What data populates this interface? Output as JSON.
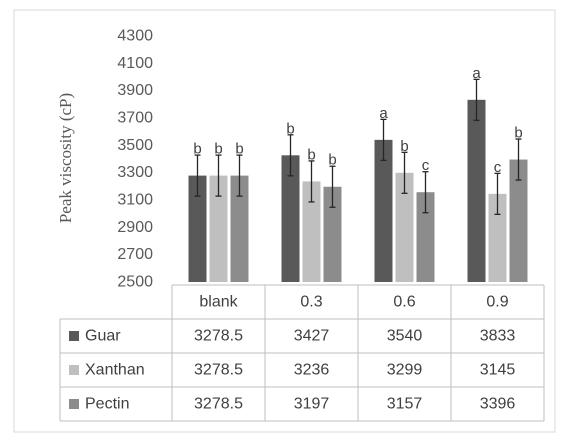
{
  "chart_data": {
    "type": "bar",
    "categories": [
      "blank",
      "0.3",
      "0.6",
      "0.9"
    ],
    "ylabel": "Peak viscosity (cP)",
    "ylim": [
      2500,
      4300
    ],
    "yticks": [
      2500,
      2700,
      2900,
      3100,
      3300,
      3500,
      3700,
      3900,
      4100,
      4300
    ],
    "grid": false,
    "legend": "data table below chart",
    "series": [
      {
        "name": "Guar",
        "color": "#595959",
        "values": [
          3278.5,
          3427,
          3540,
          3833
        ],
        "errors": [
          150,
          150,
          150,
          150
        ],
        "letters": [
          "b",
          "b",
          "a",
          "a"
        ]
      },
      {
        "name": "Xanthan",
        "color": "#bfbfbf",
        "values": [
          3278.5,
          3236,
          3299,
          3145
        ],
        "errors": [
          150,
          150,
          150,
          150
        ],
        "letters": [
          "b",
          "b",
          "b",
          "c"
        ]
      },
      {
        "name": "Pectin",
        "color": "#8c8c8c",
        "values": [
          3278.5,
          3197,
          3157,
          3396
        ],
        "errors": [
          150,
          150,
          150,
          150
        ],
        "letters": [
          "b",
          "b",
          "c",
          "b"
        ]
      }
    ],
    "table": {
      "header": [
        "blank",
        "0.3",
        "0.6",
        "0.9"
      ],
      "rows": [
        {
          "label": "Guar",
          "cells": [
            "3278.5",
            "3427",
            "3540",
            "3833"
          ]
        },
        {
          "label": "Xanthan",
          "cells": [
            "3278.5",
            "3236",
            "3299",
            "3145"
          ]
        },
        {
          "label": "Pectin",
          "cells": [
            "3278.5",
            "3197",
            "3157",
            "3396"
          ]
        }
      ]
    }
  }
}
